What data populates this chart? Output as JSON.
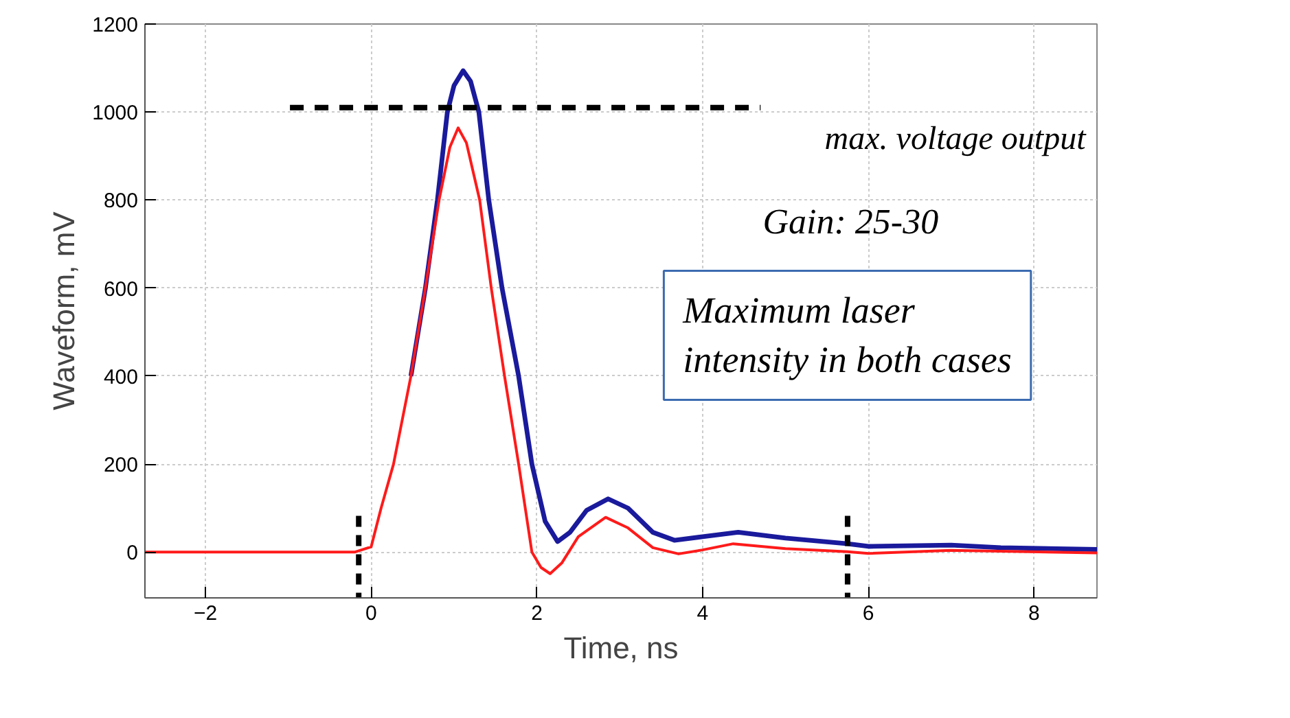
{
  "chart_data": {
    "type": "line",
    "xlabel": "Time, ns",
    "ylabel": "Waveform, mV",
    "xlim": [
      -2.73,
      8.76
    ],
    "ylim": [
      -104,
      1200
    ],
    "xticks": [
      {
        "value": -2,
        "label": "−2"
      },
      0,
      2,
      4,
      6,
      8
    ],
    "yticks": [
      0,
      200,
      400,
      600,
      800,
      1000,
      1200
    ],
    "grid": true,
    "line_style": "solid",
    "marker": "none",
    "series": [
      {
        "color": "#1a1a9c",
        "x": [
          0.48,
          0.655,
          0.8,
          0.92,
          1.0,
          1.11,
          1.2,
          1.3,
          1.42,
          1.58,
          1.78,
          1.94,
          2.1,
          2.25,
          2.4,
          2.6,
          2.86,
          3.1,
          3.4,
          3.66,
          4.0,
          4.43,
          5.0,
          5.75,
          6.0,
          7.0,
          7.6,
          8.76
        ],
        "values": [
          400,
          600,
          800,
          1000,
          1060,
          1094,
          1070,
          1000,
          800,
          600,
          400,
          200,
          70,
          24,
          45,
          95,
          121,
          100,
          45,
          27,
          35,
          45,
          32,
          19,
          13,
          16,
          10,
          6
        ]
      },
      {
        "color": "#ff1a1a",
        "x": [
          -2.73,
          -1,
          -0.2,
          0,
          0.12,
          0.27,
          0.48,
          0.655,
          0.82,
          0.95,
          1.05,
          1.15,
          1.31,
          1.45,
          1.61,
          1.78,
          1.94,
          2.05,
          2.16,
          2.3,
          2.5,
          2.83,
          3.1,
          3.4,
          3.71,
          4.0,
          4.37,
          5.0,
          5.75,
          6.0,
          7.0,
          8.76
        ],
        "values": [
          0,
          0,
          0,
          12,
          100,
          200,
          400,
          600,
          800,
          920,
          964,
          930,
          800,
          600,
          400,
          200,
          0,
          -35,
          -49,
          -25,
          35,
          79,
          55,
          10,
          -4,
          5,
          19,
          8,
          1,
          -3,
          4,
          -2
        ]
      },
      {
        "type": "line",
        "color": "#000000",
        "line_style": "dashed",
        "x": [
          -0.98,
          4.7
        ],
        "values": [
          1010,
          1010
        ]
      }
    ],
    "ref_lines": [
      {
        "axis": "x",
        "value": -0.15,
        "line_style": "dashed",
        "color": "#000000"
      },
      {
        "axis": "x",
        "value": 5.75,
        "line_style": "dashed",
        "color": "#000000"
      }
    ],
    "annotations": [
      "max. voltage output",
      "Gain: 25-30",
      "Maximum laser\nintensity in both cases"
    ]
  }
}
